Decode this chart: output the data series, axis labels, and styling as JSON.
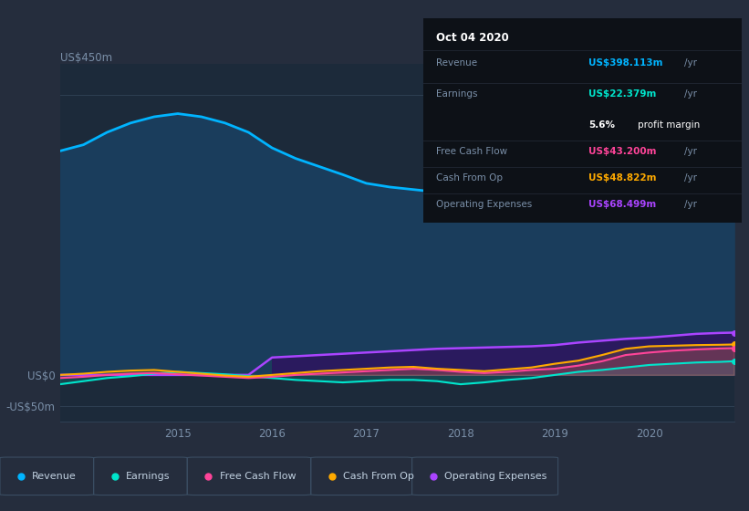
{
  "bg_color": "#252d3d",
  "plot_bg_color": "#1c2a3a",
  "tooltip_bg": "#0d1117",
  "grid_color": "#2e3f52",
  "title_date": "Oct 04 2020",
  "tooltip": {
    "Revenue": {
      "value": "US$398.113m",
      "color": "#00b4ff"
    },
    "Earnings": {
      "value": "US$22.379m",
      "color": "#00e5cc"
    },
    "profit_margin": "5.6%",
    "Free Cash Flow": {
      "value": "US$43.200m",
      "color": "#ff4499"
    },
    "Cash From Op": {
      "value": "US$48.822m",
      "color": "#ffaa00"
    },
    "Operating Expenses": {
      "value": "US$68.499m",
      "color": "#aa44ff"
    }
  },
  "ylim": [
    -75000000,
    500000000
  ],
  "yticks": [
    -50000000,
    0,
    450000000
  ],
  "ytick_labels": [
    "-US$50m",
    "US$0",
    "US$450m"
  ],
  "years": [
    2013.75,
    2014.0,
    2014.25,
    2014.5,
    2014.75,
    2015.0,
    2015.25,
    2015.5,
    2015.75,
    2016.0,
    2016.25,
    2016.5,
    2016.75,
    2017.0,
    2017.25,
    2017.5,
    2017.75,
    2018.0,
    2018.25,
    2018.5,
    2018.75,
    2019.0,
    2019.25,
    2019.5,
    2019.75,
    2020.0,
    2020.25,
    2020.5,
    2020.75,
    2020.9
  ],
  "revenue": [
    360000000,
    370000000,
    390000000,
    405000000,
    415000000,
    420000000,
    415000000,
    405000000,
    390000000,
    365000000,
    348000000,
    335000000,
    322000000,
    308000000,
    302000000,
    298000000,
    294000000,
    292000000,
    298000000,
    308000000,
    320000000,
    338000000,
    352000000,
    368000000,
    378000000,
    382000000,
    388000000,
    393000000,
    396000000,
    398000000
  ],
  "earnings": [
    -15000000,
    -10000000,
    -5000000,
    -2000000,
    2000000,
    5000000,
    3000000,
    1000000,
    -2000000,
    -5000000,
    -8000000,
    -10000000,
    -12000000,
    -10000000,
    -8000000,
    -8000000,
    -10000000,
    -15000000,
    -12000000,
    -8000000,
    -5000000,
    0,
    5000000,
    8000000,
    12000000,
    16000000,
    18000000,
    20000000,
    21000000,
    22000000
  ],
  "free_cash_flow": [
    -5000000,
    -3000000,
    0,
    2000000,
    3000000,
    1000000,
    -1000000,
    -3000000,
    -5000000,
    -3000000,
    0,
    2000000,
    4000000,
    6000000,
    8000000,
    10000000,
    8000000,
    5000000,
    3000000,
    5000000,
    8000000,
    10000000,
    15000000,
    22000000,
    32000000,
    36000000,
    39000000,
    41000000,
    42500000,
    43000000
  ],
  "cash_from_op": [
    0,
    2000000,
    5000000,
    7000000,
    8000000,
    5000000,
    2000000,
    -1000000,
    -3000000,
    0,
    3000000,
    6000000,
    8000000,
    10000000,
    12000000,
    13000000,
    10000000,
    8000000,
    6000000,
    9000000,
    12000000,
    18000000,
    23000000,
    32000000,
    42000000,
    46000000,
    47000000,
    48000000,
    48500000,
    49000000
  ],
  "operating_expenses": [
    0,
    0,
    0,
    0,
    0,
    0,
    0,
    0,
    0,
    28000000,
    30000000,
    32000000,
    34000000,
    36000000,
    38000000,
    40000000,
    42000000,
    43000000,
    44000000,
    45000000,
    46000000,
    48000000,
    52000000,
    55000000,
    58000000,
    60000000,
    63000000,
    66000000,
    67500000,
    68000000
  ],
  "revenue_color": "#00b4ff",
  "revenue_fill_color": "#1a3d5c",
  "earnings_color": "#00e5cc",
  "free_cash_flow_color": "#ff4499",
  "cash_from_op_color": "#ffaa00",
  "operating_expenses_color": "#aa44ff",
  "operating_fill_color": "#2a1a5e",
  "xtick_years": [
    2015,
    2016,
    2017,
    2018,
    2019,
    2020
  ],
  "legend_items": [
    "Revenue",
    "Earnings",
    "Free Cash Flow",
    "Cash From Op",
    "Operating Expenses"
  ],
  "legend_colors": [
    "#00b4ff",
    "#00e5cc",
    "#ff4499",
    "#ffaa00",
    "#aa44ff"
  ]
}
